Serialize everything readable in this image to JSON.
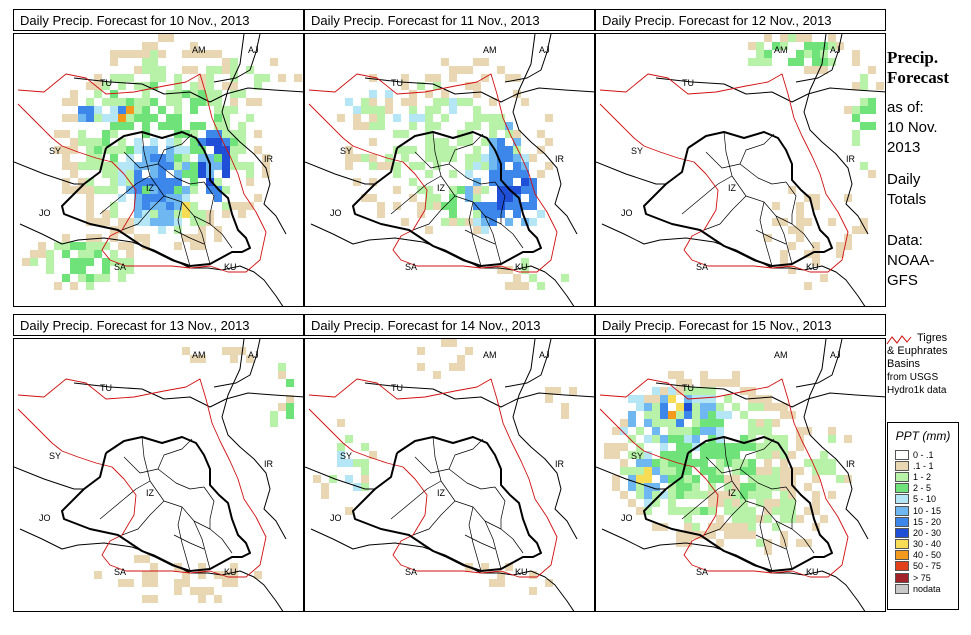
{
  "panels": [
    {
      "title": "Daily Precip. Forecast for  10 Nov., 2013"
    },
    {
      "title": "Daily Precip. Forecast for  11 Nov., 2013"
    },
    {
      "title": "Daily Precip. Forecast for  12 Nov., 2013"
    },
    {
      "title": "Daily Precip. Forecast for  13 Nov., 2013"
    },
    {
      "title": "Daily Precip. Forecast for  14 Nov., 2013"
    },
    {
      "title": "Daily Precip. Forecast for  15 Nov., 2013"
    }
  ],
  "map_labels": [
    "AM",
    "AJ",
    "TU",
    "SY",
    "IR",
    "IZ",
    "JO",
    "SA",
    "KU"
  ],
  "sidebar": {
    "title_line1": "Precip.",
    "title_line2": "Forecast",
    "asof_line1": "as of:",
    "asof_line2": "10 Nov.",
    "asof_line3": "2013",
    "daily_line1": "Daily",
    "daily_line2": "Totals",
    "data_line1": "Data:",
    "data_line2": "NOAA-",
    "data_line3": "GFS"
  },
  "basin_note": {
    "line1": "Tigres",
    "line2": "& Euphrates",
    "line3": "Basins",
    "line4": "from USGS",
    "line5": "Hydro1k data"
  },
  "legend": {
    "title": "PPT (mm)",
    "items": [
      {
        "label": "0 - .1",
        "color": "#ffffff"
      },
      {
        "label": ".1 - 1",
        "color": "#e9d6b3"
      },
      {
        "label": "1 - 2",
        "color": "#b8f2a8"
      },
      {
        "label": "2 - 5",
        "color": "#6fe27a"
      },
      {
        "label": "5 - 10",
        "color": "#b4e6f5"
      },
      {
        "label": "10 - 15",
        "color": "#6fb7f0"
      },
      {
        "label": "15 - 20",
        "color": "#3d86ea"
      },
      {
        "label": "20 - 30",
        "color": "#1f4fd6"
      },
      {
        "label": "30 - 40",
        "color": "#f7dc55"
      },
      {
        "label": "40 - 50",
        "color": "#f39a1d"
      },
      {
        "label": "50 - 75",
        "color": "#e2401a"
      },
      {
        "label": "> 75",
        "color": "#a3222a"
      },
      {
        "label": "nodata",
        "color": "#c8c8c8"
      }
    ]
  }
}
